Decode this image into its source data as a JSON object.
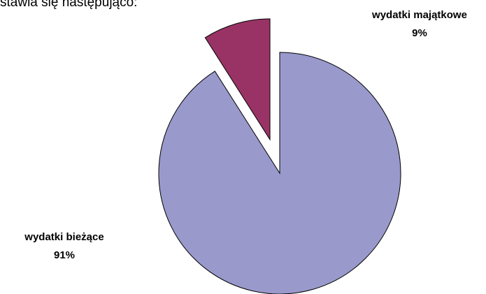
{
  "text_above": "stawia się następująco:",
  "chart_data": {
    "type": "pie",
    "categories": [
      "wydatki bieżące",
      "wydatki majątkowe"
    ],
    "values": [
      91,
      9
    ],
    "value_labels": [
      "91%",
      "9%"
    ],
    "colors": [
      "#9999cc",
      "#993366"
    ],
    "exploded": [
      false,
      true
    ]
  }
}
